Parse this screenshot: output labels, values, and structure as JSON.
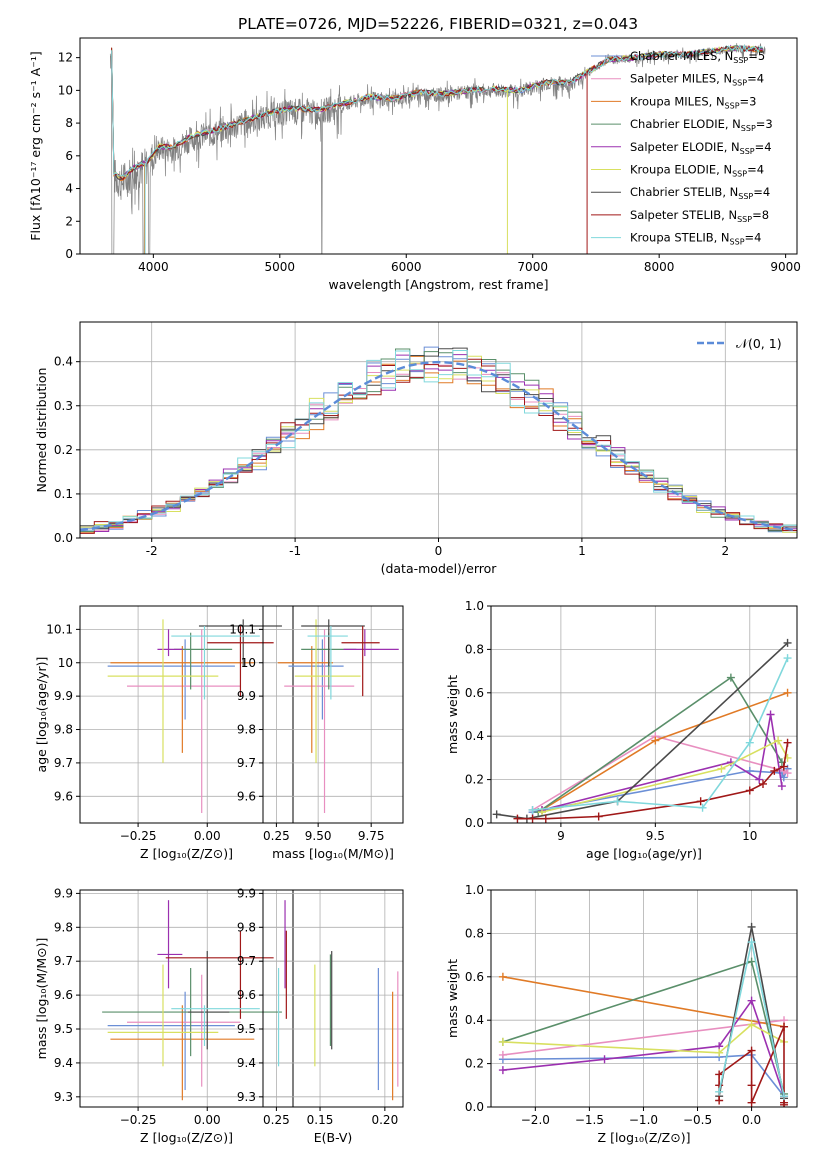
{
  "figure_title": "PLATE=0726, MJD=52226, FIBERID=0321, z=0.043",
  "colors": {
    "Chabrier MILES": "#6b8fd6",
    "Salpeter MILES": "#e88fc0",
    "Kroupa MILES": "#e07a26",
    "Chabrier ELODIE": "#5a8f6a",
    "Salpeter ELODIE": "#9b30b0",
    "Kroupa ELODIE": "#d8e060",
    "Chabrier STELIB": "#4a4a4a",
    "Salpeter STELIB": "#a01818",
    "Kroupa STELIB": "#80d8dc",
    "data": "#808080",
    "gauss": "#5b8bd8"
  },
  "chart_data": [
    {
      "id": "spectrum",
      "type": "line",
      "xlabel": "wavelength [Angstrom, rest frame]",
      "ylabel": "Flux [fλ10⁻¹⁷ erg cm⁻² s⁻¹ A⁻¹]",
      "xlim": [
        3420,
        9090
      ],
      "ylim": [
        0,
        13.2
      ],
      "xticks": [
        4000,
        5000,
        6000,
        7000,
        8000,
        9000
      ],
      "yticks": [
        0,
        2,
        4,
        6,
        8,
        10,
        12
      ],
      "grid": false,
      "legend_position": "top-right",
      "legend": [
        "Chabrier MILES, N_SSP=5",
        "Salpeter MILES, N_SSP=4",
        "Kroupa MILES, N_SSP=3",
        "Chabrier ELODIE, N_SSP=3",
        "Salpeter ELODIE, N_SSP=4",
        "Kroupa ELODIE, N_SSP=4",
        "Chabrier STELIB, N_SSP=4",
        "Salpeter STELIB, N_SSP=8",
        "Kroupa STELIB, N_SSP=4"
      ],
      "model_continuum": [
        [
          3680,
          5.0
        ],
        [
          3750,
          4.6
        ],
        [
          3850,
          5.3
        ],
        [
          3950,
          5.6
        ],
        [
          4050,
          6.6
        ],
        [
          4150,
          6.5
        ],
        [
          4300,
          7.2
        ],
        [
          4500,
          7.6
        ],
        [
          4700,
          8.1
        ],
        [
          4900,
          8.6
        ],
        [
          5100,
          8.9
        ],
        [
          5300,
          8.8
        ],
        [
          5500,
          9.2
        ],
        [
          5700,
          9.6
        ],
        [
          5900,
          9.5
        ],
        [
          6100,
          9.9
        ],
        [
          6300,
          9.8
        ],
        [
          6500,
          10.0
        ],
        [
          6700,
          10.1
        ],
        [
          6900,
          10.0
        ],
        [
          7100,
          10.5
        ],
        [
          7300,
          10.5
        ],
        [
          7450,
          11.2
        ],
        [
          7600,
          11.9
        ],
        [
          7800,
          12.0
        ],
        [
          8000,
          12.2
        ],
        [
          8200,
          12.2
        ],
        [
          8400,
          12.4
        ],
        [
          8600,
          12.6
        ],
        [
          8800,
          12.5
        ]
      ]
    },
    {
      "id": "residuals",
      "type": "histogram",
      "xlabel": "(data-model)/error",
      "ylabel": "Normed distribution",
      "xlim": [
        -2.5,
        2.5
      ],
      "ylim": [
        0,
        0.49
      ],
      "xticks": [
        -2,
        -1,
        0,
        1,
        2
      ],
      "yticks": [
        0.0,
        0.1,
        0.2,
        0.3,
        0.4
      ],
      "grid": true,
      "legend_position": "top-right",
      "legend": [
        "𝒩(0, 1)"
      ],
      "gaussian": {
        "mean": 0,
        "sigma": 1
      }
    },
    {
      "id": "age-Z",
      "type": "errorbar",
      "xlabel": "Z [log₁₀(Z/Z⊙)]",
      "ylabel": "age  [log₁₀(age/yr)]",
      "xlim": [
        -0.46,
        0.31
      ],
      "ylim": [
        9.52,
        10.17
      ],
      "xticks": [
        -0.25,
        0.0,
        0.25
      ],
      "xticklabels": [
        "−0.25",
        "0.00",
        "0.25"
      ],
      "yticks": [
        9.6,
        9.7,
        9.8,
        9.9,
        10.0,
        10.1
      ],
      "grid": true,
      "points": [
        {
          "model": "Chabrier MILES",
          "x": -0.08,
          "xerr": [
            0.28,
            0.18
          ],
          "y": 9.99,
          "yerr": [
            0.16,
            0.08
          ]
        },
        {
          "model": "Salpeter MILES",
          "x": -0.02,
          "xerr": [
            0.27,
            0.14
          ],
          "y": 9.93,
          "yerr": [
            0.38,
            0.17
          ]
        },
        {
          "model": "Kroupa MILES",
          "x": -0.09,
          "xerr": [
            0.26,
            0.26
          ],
          "y": 10.0,
          "yerr": [
            0.27,
            0.05
          ]
        },
        {
          "model": "Chabrier ELODIE",
          "x": -0.06,
          "xerr": [
            0.06,
            0.15
          ],
          "y": 10.04,
          "yerr": [
            0.12,
            0.05
          ]
        },
        {
          "model": "Salpeter ELODIE",
          "x": -0.14,
          "xerr": [
            0.04,
            0.05
          ],
          "y": 10.04,
          "yerr": [
            0.02,
            0.06
          ]
        },
        {
          "model": "Kroupa ELODIE",
          "x": -0.16,
          "xerr": [
            0.2,
            0.2
          ],
          "y": 9.96,
          "yerr": [
            0.26,
            0.17
          ]
        },
        {
          "model": "Chabrier STELIB",
          "x": 0.13,
          "xerr": [
            0.16,
            0.14
          ],
          "y": 10.11,
          "yerr": [
            0.12,
            0.02
          ]
        },
        {
          "model": "Salpeter STELIB",
          "x": 0.12,
          "xerr": [
            0.12,
            0.12
          ],
          "y": 10.06,
          "yerr": [
            0.16,
            0.05
          ]
        },
        {
          "model": "Kroupa STELIB",
          "x": -0.01,
          "xerr": [
            0.12,
            0.2
          ],
          "y": 10.08,
          "yerr": [
            0.19,
            0.03
          ]
        }
      ]
    },
    {
      "id": "age-mass",
      "type": "errorbar",
      "xlabel": "mass [log₁₀(M/M⊙)]",
      "ylabel": "",
      "xlim": [
        9.24,
        9.9
      ],
      "ylim": [
        9.52,
        10.17
      ],
      "xticks": [
        9.5,
        9.75
      ],
      "xticklabels": [
        "9.50",
        "9.75"
      ],
      "yticks": [
        9.6,
        9.7,
        9.8,
        9.9,
        10.0,
        10.1
      ],
      "grid": true,
      "points": [
        {
          "model": "Chabrier MILES",
          "x": 9.52,
          "xerr": [
            0.16,
            0.1
          ],
          "y": 9.99,
          "yerr": [
            0.16,
            0.08
          ]
        },
        {
          "model": "Salpeter MILES",
          "x": 9.53,
          "xerr": [
            0.19,
            0.14
          ],
          "y": 9.93,
          "yerr": [
            0.38,
            0.17
          ]
        },
        {
          "model": "Kroupa MILES",
          "x": 9.47,
          "xerr": [
            0.16,
            0.1
          ],
          "y": 10.0,
          "yerr": [
            0.27,
            0.05
          ]
        },
        {
          "model": "Chabrier ELODIE",
          "x": 9.55,
          "xerr": [
            0.13,
            0.13
          ],
          "y": 10.04,
          "yerr": [
            0.12,
            0.05
          ]
        },
        {
          "model": "Salpeter ELODIE",
          "x": 9.72,
          "xerr": [
            0.1,
            0.16
          ],
          "y": 10.04,
          "yerr": [
            0.02,
            0.06
          ]
        },
        {
          "model": "Kroupa ELODIE",
          "x": 9.49,
          "xerr": [
            0.1,
            0.21
          ],
          "y": 9.96,
          "yerr": [
            0.26,
            0.17
          ]
        },
        {
          "model": "Chabrier STELIB",
          "x": 9.55,
          "xerr": [
            0.13,
            0.17
          ],
          "y": 10.11,
          "yerr": [
            0.12,
            0.02
          ]
        },
        {
          "model": "Salpeter STELIB",
          "x": 9.71,
          "xerr": [
            0.1,
            0.08
          ],
          "y": 10.06,
          "yerr": [
            0.16,
            0.05
          ]
        },
        {
          "model": "Kroupa STELIB",
          "x": 9.56,
          "xerr": [
            0.11,
            0.08
          ],
          "y": 10.08,
          "yerr": [
            0.19,
            0.03
          ]
        }
      ]
    },
    {
      "id": "weight-age",
      "type": "line",
      "xlabel": "age  [log₁₀(age/yr)]",
      "ylabel": "mass weight",
      "xlim": [
        8.63,
        10.25
      ],
      "ylim": [
        0,
        1.0
      ],
      "xticks": [
        9.0,
        9.5,
        10.0
      ],
      "yticks": [
        0.0,
        0.2,
        0.4,
        0.6,
        0.8,
        1.0
      ],
      "grid": true,
      "series": [
        {
          "model": "Chabrier MILES",
          "x": [
            8.85,
            10.0,
            10.17,
            10.18,
            10.2
          ],
          "y": [
            0.05,
            0.24,
            0.23,
            0.21,
            0.25
          ]
        },
        {
          "model": "Salpeter MILES",
          "x": [
            8.85,
            9.5,
            10.18,
            10.2
          ],
          "y": [
            0.06,
            0.4,
            0.24,
            0.23
          ]
        },
        {
          "model": "Kroupa MILES",
          "x": [
            8.9,
            9.5,
            10.2
          ],
          "y": [
            0.06,
            0.38,
            0.6
          ]
        },
        {
          "model": "Chabrier ELODIE",
          "x": [
            8.88,
            9.9,
            10.17
          ],
          "y": [
            0.05,
            0.67,
            0.28
          ]
        },
        {
          "model": "Salpeter ELODIE",
          "x": [
            8.9,
            9.9,
            10.05,
            10.11,
            10.17
          ],
          "y": [
            0.06,
            0.28,
            0.2,
            0.5,
            0.17
          ]
        },
        {
          "model": "Kroupa ELODIE",
          "x": [
            8.9,
            9.85,
            10.15,
            10.2
          ],
          "y": [
            0.05,
            0.25,
            0.38,
            0.3
          ]
        },
        {
          "model": "Chabrier STELIB",
          "x": [
            8.66,
            8.82,
            9.3,
            10.2
          ],
          "y": [
            0.04,
            0.02,
            0.1,
            0.83
          ]
        },
        {
          "model": "Salpeter STELIB",
          "x": [
            8.77,
            8.85,
            8.92,
            9.2,
            9.74,
            10.0,
            10.07,
            10.13,
            10.18,
            10.2
          ],
          "y": [
            0.02,
            0.02,
            0.02,
            0.03,
            0.1,
            0.15,
            0.18,
            0.24,
            0.26,
            0.37
          ]
        },
        {
          "model": "Kroupa STELIB",
          "x": [
            8.85,
            9.3,
            9.75,
            10.0,
            10.2
          ],
          "y": [
            0.06,
            0.1,
            0.07,
            0.37,
            0.76
          ]
        }
      ]
    },
    {
      "id": "mass-Z",
      "type": "errorbar",
      "xlabel": "Z [log₁₀(Z/Z⊙)]",
      "ylabel": "mass [log₁₀(M/M⊙)]",
      "xlim": [
        -0.46,
        0.31
      ],
      "ylim": [
        9.27,
        9.91
      ],
      "xticks": [
        -0.25,
        0.0,
        0.25
      ],
      "xticklabels": [
        "−0.25",
        "0.00",
        "0.25"
      ],
      "yticks": [
        9.3,
        9.4,
        9.5,
        9.6,
        9.7,
        9.8,
        9.9
      ],
      "grid": true,
      "points": [
        {
          "model": "Chabrier MILES",
          "x": -0.08,
          "xerr": [
            0.28,
            0.18
          ],
          "y": 9.51,
          "yerr": [
            0.19,
            0.1
          ]
        },
        {
          "model": "Salpeter MILES",
          "x": -0.02,
          "xerr": [
            0.27,
            0.14
          ],
          "y": 9.52,
          "yerr": [
            0.19,
            0.14
          ]
        },
        {
          "model": "Kroupa MILES",
          "x": -0.09,
          "xerr": [
            0.26,
            0.26
          ],
          "y": 9.47,
          "yerr": [
            0.18,
            0.1
          ]
        },
        {
          "model": "Chabrier ELODIE",
          "x": -0.06,
          "xerr": [
            0.32,
            0.33
          ],
          "y": 9.55,
          "yerr": [
            0.13,
            0.13
          ]
        },
        {
          "model": "Salpeter ELODIE",
          "x": -0.14,
          "xerr": [
            0.04,
            0.05
          ],
          "y": 9.72,
          "yerr": [
            0.1,
            0.16
          ]
        },
        {
          "model": "Kroupa ELODIE",
          "x": -0.16,
          "xerr": [
            0.2,
            0.2
          ],
          "y": 9.49,
          "yerr": [
            0.1,
            0.2
          ]
        },
        {
          "model": "Chabrier STELIB",
          "x": 0.0,
          "xerr": [
            0.07,
            0.08
          ],
          "y": 9.55,
          "yerr": [
            0.11,
            0.18
          ]
        },
        {
          "model": "Salpeter STELIB",
          "x": 0.12,
          "xerr": [
            0.27,
            0.12
          ],
          "y": 9.71,
          "yerr": [
            0.18,
            0.08
          ]
        },
        {
          "model": "Kroupa STELIB",
          "x": -0.01,
          "xerr": [
            0.12,
            0.2
          ],
          "y": 9.56,
          "yerr": [
            0.11,
            0.01
          ]
        }
      ]
    },
    {
      "id": "mass-ebv",
      "type": "errorbar",
      "xlabel": "E(B-V)",
      "ylabel": "",
      "xlim": [
        0.106,
        0.214
      ],
      "ylim": [
        9.27,
        9.91
      ],
      "xticks": [
        0.15,
        0.2
      ],
      "xticklabels": [
        "0.15",
        "0.20"
      ],
      "yticks": [
        9.3,
        9.4,
        9.5,
        9.6,
        9.7,
        9.8,
        9.9
      ],
      "grid": true,
      "points": [
        {
          "model": "Chabrier MILES",
          "x": 0.195,
          "y": 9.51,
          "yerr": [
            0.19,
            0.17
          ]
        },
        {
          "model": "Salpeter MILES",
          "x": 0.21,
          "y": 9.52,
          "yerr": [
            0.19,
            0.15
          ]
        },
        {
          "model": "Kroupa MILES",
          "x": 0.206,
          "y": 9.47,
          "yerr": [
            0.18,
            0.14
          ]
        },
        {
          "model": "Chabrier ELODIE",
          "x": 0.158,
          "y": 9.55,
          "yerr": [
            0.1,
            0.17
          ]
        },
        {
          "model": "Salpeter ELODIE",
          "x": 0.123,
          "y": 9.72,
          "yerr": [
            0.1,
            0.16
          ]
        },
        {
          "model": "Kroupa ELODIE",
          "x": 0.146,
          "y": 9.49,
          "yerr": [
            0.1,
            0.2
          ]
        },
        {
          "model": "Chabrier STELIB",
          "x": 0.159,
          "y": 9.55,
          "yerr": [
            0.11,
            0.18
          ]
        },
        {
          "model": "Salpeter STELIB",
          "x": 0.124,
          "y": 9.71,
          "yerr": [
            0.18,
            0.08
          ]
        },
        {
          "model": "Kroupa STELIB",
          "x": 0.118,
          "y": 9.56,
          "yerr": [
            0.17,
            0.12
          ]
        }
      ]
    },
    {
      "id": "weight-Z",
      "type": "line",
      "xlabel": "Z [log₁₀(Z/Z⊙)]",
      "ylabel": "mass weight",
      "xlim": [
        -2.41,
        0.42
      ],
      "ylim": [
        0,
        1.0
      ],
      "xticks": [
        -2.0,
        -1.5,
        -1.0,
        -0.5,
        0.0
      ],
      "xticklabels": [
        "−2.0",
        "−1.5",
        "−1.0",
        "−0.5",
        "0.0"
      ],
      "yticks": [
        0.0,
        0.2,
        0.4,
        0.6,
        0.8,
        1.0
      ],
      "grid": true,
      "series": [
        {
          "model": "Chabrier MILES",
          "x": [
            -2.3,
            -0.3,
            0.0,
            0.3
          ],
          "y": [
            0.22,
            0.23,
            0.24,
            0.05
          ]
        },
        {
          "model": "Salpeter MILES",
          "x": [
            -2.3,
            0.3
          ],
          "y": [
            0.24,
            0.4
          ]
        },
        {
          "model": "Kroupa MILES",
          "x": [
            -2.3,
            0.3
          ],
          "y": [
            0.6,
            0.37
          ]
        },
        {
          "model": "Chabrier ELODIE",
          "x": [
            -2.3,
            0.0,
            0.3
          ],
          "y": [
            0.3,
            0.67,
            0.06
          ]
        },
        {
          "model": "Salpeter ELODIE",
          "x": [
            -2.3,
            -1.36,
            -0.3,
            0.0,
            0.3
          ],
          "y": [
            0.17,
            0.22,
            0.28,
            0.49,
            0.05
          ]
        },
        {
          "model": "Kroupa ELODIE",
          "x": [
            -2.3,
            -0.3,
            0.0,
            0.3
          ],
          "y": [
            0.3,
            0.25,
            0.38,
            0.3
          ]
        },
        {
          "model": "Chabrier STELIB",
          "x": [
            -0.3,
            0.0,
            0.3
          ],
          "y": [
            0.05,
            0.83,
            0.04
          ]
        },
        {
          "model": "Salpeter STELIB",
          "x": [
            -0.3,
            -0.3,
            -0.3,
            0.0,
            0.0,
            0.0,
            0.3,
            0.3,
            0.3
          ],
          "y": [
            0.03,
            0.1,
            0.15,
            0.26,
            0.1,
            0.02,
            0.37,
            0.02,
            0.01
          ]
        },
        {
          "model": "Kroupa STELIB",
          "x": [
            -0.3,
            0.0,
            0.3
          ],
          "y": [
            0.07,
            0.76,
            0.05
          ]
        }
      ]
    }
  ]
}
